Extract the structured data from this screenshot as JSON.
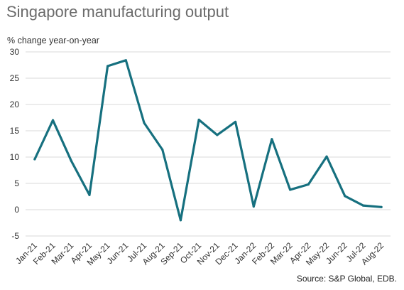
{
  "chart_data": {
    "type": "line",
    "title": "Singapore manufacturing output",
    "ylabel": "% change year-on-year",
    "xlabel": "",
    "source": "Source: S&P Global, EDB.",
    "categories": [
      "Jan-21",
      "Feb-21",
      "Mar-21",
      "Apr-21",
      "May-21",
      "Jun-21",
      "Jul-21",
      "Aug-21",
      "Sep-21",
      "Oct-21",
      "Nov-21",
      "Dec-21",
      "Jan-22",
      "Feb-22",
      "Mar-22",
      "Apr-22",
      "May-22",
      "Jun-22",
      "Jul-22",
      "Aug-22"
    ],
    "series": [
      {
        "values": [
          9.6,
          17.0,
          9.3,
          2.8,
          27.3,
          28.4,
          16.5,
          11.4,
          -2.0,
          17.1,
          14.2,
          16.7,
          0.6,
          13.4,
          3.8,
          4.8,
          10.1,
          2.6,
          0.8,
          0.5
        ]
      }
    ],
    "ylim": [
      -5,
      30
    ],
    "yticks": [
      -5,
      0,
      5,
      10,
      15,
      20,
      25,
      30
    ],
    "grid": true,
    "line_color": "#16707f"
  }
}
